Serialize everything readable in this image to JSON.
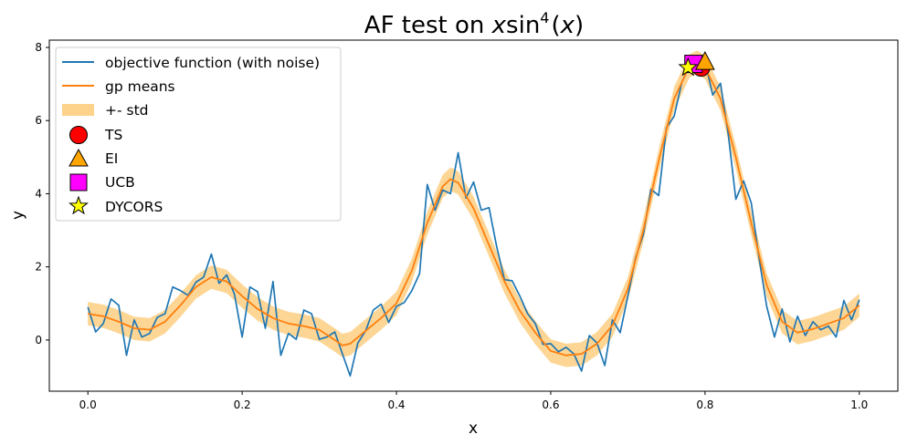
{
  "chart_data": {
    "type": "line",
    "title": "AF test on x·sin⁴(x)",
    "title_parts": {
      "prefix": "AF test on ",
      "x1": "x",
      "sin": "sin",
      "sup": "4",
      "open": "(",
      "x2": "x",
      "close": ")"
    },
    "xlabel": "x",
    "ylabel": "y",
    "xlim": [
      -0.05,
      1.05
    ],
    "ylim": [
      -1.4,
      8.2
    ],
    "xticks": [
      0.0,
      0.2,
      0.4,
      0.6,
      0.8,
      1.0
    ],
    "xtick_labels": [
      "0.0",
      "0.2",
      "0.4",
      "0.6",
      "0.8",
      "1.0"
    ],
    "yticks": [
      0,
      2,
      4,
      6,
      8
    ],
    "ytick_labels": [
      "0",
      "2",
      "4",
      "6",
      "8"
    ],
    "grid": false,
    "legend_position": "top-left",
    "legend": {
      "objective": "objective function (with noise)",
      "gp": "gp means",
      "std": "+- std",
      "ts": "TS",
      "ei": "EI",
      "ucb": "UCB",
      "dycors": "DYCORS"
    },
    "colors": {
      "objective": "#1f77b4",
      "gp": "#ff7f0e",
      "std": "#fdd28a",
      "ts": "#ff0000",
      "ei": "#ffa500",
      "ucb": "#ff00ff",
      "dycors": "#ffff00"
    },
    "objective": {
      "x": [
        0.0,
        0.01,
        0.02,
        0.03,
        0.04,
        0.05,
        0.06,
        0.07,
        0.08,
        0.09,
        0.1,
        0.11,
        0.12,
        0.13,
        0.14,
        0.15,
        0.16,
        0.17,
        0.18,
        0.19,
        0.2,
        0.21,
        0.22,
        0.23,
        0.24,
        0.25,
        0.26,
        0.27,
        0.28,
        0.29,
        0.3,
        0.31,
        0.32,
        0.33,
        0.34,
        0.35,
        0.36,
        0.37,
        0.38,
        0.39,
        0.4,
        0.41,
        0.42,
        0.43,
        0.44,
        0.45,
        0.46,
        0.47,
        0.48,
        0.49,
        0.5,
        0.51,
        0.52,
        0.53,
        0.54,
        0.55,
        0.56,
        0.57,
        0.58,
        0.59,
        0.6,
        0.61,
        0.62,
        0.63,
        0.64,
        0.65,
        0.66,
        0.67,
        0.68,
        0.69,
        0.7,
        0.71,
        0.72,
        0.73,
        0.74,
        0.75,
        0.76,
        0.77,
        0.78,
        0.79,
        0.8,
        0.81,
        0.82,
        0.83,
        0.84,
        0.85,
        0.86,
        0.87,
        0.88,
        0.89,
        0.9,
        0.91,
        0.92,
        0.93,
        0.94,
        0.95,
        0.96,
        0.97,
        0.98,
        0.99,
        1.0
      ],
      "y": [
        0.9,
        0.22,
        0.45,
        1.12,
        0.95,
        -0.42,
        0.55,
        0.08,
        0.18,
        0.62,
        0.72,
        1.45,
        1.35,
        1.22,
        1.58,
        1.72,
        2.35,
        1.55,
        1.78,
        1.25,
        0.08,
        1.45,
        1.32,
        0.32,
        1.6,
        -0.42,
        0.18,
        0.02,
        0.82,
        0.72,
        0.02,
        0.08,
        0.22,
        -0.38,
        -0.98,
        -0.08,
        0.25,
        0.82,
        0.98,
        0.48,
        0.92,
        1.02,
        1.35,
        1.82,
        4.25,
        3.55,
        4.1,
        4.0,
        5.12,
        3.88,
        4.32,
        3.55,
        3.62,
        2.55,
        1.65,
        1.62,
        1.2,
        0.72,
        0.45,
        -0.12,
        -0.1,
        -0.32,
        -0.2,
        -0.38,
        -0.85,
        0.12,
        -0.08,
        -0.7,
        0.55,
        0.2,
        1.2,
        2.25,
        2.88,
        4.12,
        3.95,
        5.8,
        6.12,
        7.05,
        7.5,
        7.72,
        7.62,
        6.7,
        7.02,
        5.65,
        3.85,
        4.35,
        3.75,
        2.25,
        0.92,
        0.08,
        0.85,
        -0.05,
        0.65,
        0.12,
        0.5,
        0.28,
        0.38,
        0.08,
        1.08,
        0.55,
        1.1
      ]
    },
    "gp_mean": {
      "x": [
        0.0,
        0.02,
        0.04,
        0.06,
        0.08,
        0.1,
        0.12,
        0.14,
        0.16,
        0.18,
        0.2,
        0.22,
        0.24,
        0.26,
        0.28,
        0.3,
        0.32,
        0.33,
        0.34,
        0.36,
        0.38,
        0.4,
        0.42,
        0.44,
        0.46,
        0.47,
        0.48,
        0.5,
        0.52,
        0.54,
        0.56,
        0.58,
        0.6,
        0.62,
        0.64,
        0.66,
        0.68,
        0.7,
        0.72,
        0.74,
        0.76,
        0.78,
        0.79,
        0.8,
        0.82,
        0.84,
        0.86,
        0.88,
        0.9,
        0.92,
        0.94,
        0.96,
        0.98,
        1.0
      ],
      "y": [
        0.72,
        0.65,
        0.5,
        0.32,
        0.28,
        0.5,
        0.95,
        1.45,
        1.72,
        1.6,
        1.2,
        0.85,
        0.6,
        0.45,
        0.38,
        0.28,
        0.0,
        -0.15,
        -0.1,
        0.25,
        0.6,
        1.0,
        1.9,
        3.2,
        4.2,
        4.4,
        4.3,
        3.6,
        2.6,
        1.6,
        0.8,
        0.2,
        -0.3,
        -0.42,
        -0.38,
        -0.1,
        0.4,
        1.4,
        3.0,
        4.9,
        6.6,
        7.5,
        7.6,
        7.45,
        6.6,
        5.0,
        3.2,
        1.5,
        0.5,
        0.2,
        0.3,
        0.45,
        0.6,
        0.95
      ]
    },
    "gp_std": 0.32,
    "markers": [
      {
        "name": "TS",
        "x": 0.795,
        "y": 7.45
      },
      {
        "name": "EI",
        "x": 0.8,
        "y": 7.6
      },
      {
        "name": "UCB",
        "x": 0.785,
        "y": 7.55
      },
      {
        "name": "DYCORS",
        "x": 0.778,
        "y": 7.45
      }
    ]
  }
}
